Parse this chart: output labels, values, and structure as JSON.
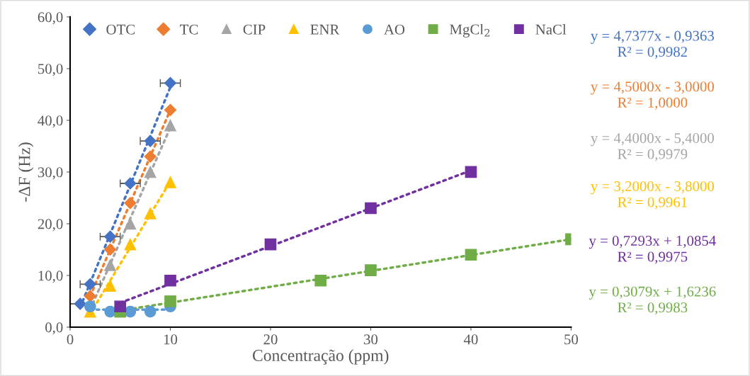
{
  "chart_data": {
    "type": "scatter",
    "xlabel": "Concentração (ppm)",
    "ylabel": "-ΔF (Hz)",
    "xlim": [
      0,
      50
    ],
    "xticks": [
      0,
      10,
      20,
      30,
      40,
      50
    ],
    "ylim": [
      0,
      60
    ],
    "yticks": [
      {
        "value": 0,
        "label": "0,0"
      },
      {
        "value": 10,
        "label": "10,0"
      },
      {
        "value": 20,
        "label": "20,0"
      },
      {
        "value": 30,
        "label": "30,0"
      },
      {
        "value": 40,
        "label": "40,0"
      },
      {
        "value": 50,
        "label": "50,0"
      },
      {
        "value": 60,
        "label": "60,0"
      }
    ],
    "grid": false,
    "legend": "top",
    "series": [
      {
        "name": "OTC",
        "color": "#4472c4",
        "marker": "diamond",
        "x": [
          1,
          2,
          4,
          6,
          8,
          10
        ],
        "values": [
          4.5,
          8.3,
          17.5,
          27.8,
          36,
          47.2
        ],
        "xerrors": [
          1,
          1,
          1,
          1,
          1,
          1
        ]
      },
      {
        "name": "TC",
        "color": "#ed7d31",
        "marker": "diamond",
        "x": [
          2,
          4,
          6,
          8,
          10
        ],
        "values": [
          6,
          15,
          24,
          33,
          42
        ]
      },
      {
        "name": "CIP",
        "color": "#a5a5a5",
        "marker": "triangle",
        "x": [
          4,
          6,
          8,
          10
        ],
        "values": [
          12,
          20,
          30,
          39
        ]
      },
      {
        "name": "ENR",
        "color": "#ffc000",
        "marker": "triangle",
        "x": [
          2,
          4,
          6,
          8,
          10
        ],
        "values": [
          3,
          8,
          16,
          22,
          28
        ]
      },
      {
        "name": "AO",
        "color": "#5b9bd5",
        "marker": "circle",
        "x": [
          2,
          4,
          6,
          8,
          10
        ],
        "values": [
          4,
          3,
          3,
          3,
          4
        ]
      },
      {
        "name": "MgCl$_{2}$",
        "color": "#70ad47",
        "marker": "square",
        "x": [
          5,
          10,
          25,
          30,
          40,
          50
        ],
        "values": [
          3,
          5,
          9,
          11,
          14,
          17
        ]
      },
      {
        "name": "NaCl",
        "color": "#7030a0",
        "marker": "square",
        "x": [
          5,
          10,
          20,
          30,
          40
        ],
        "values": [
          4,
          9,
          16,
          23,
          30
        ]
      },
      {
        "type": "line",
        "color": "#4472c4",
        "line_style": "dotted",
        "marker": "none",
        "x": [
          1,
          10
        ],
        "values": [
          3.8,
          46.4
        ]
      },
      {
        "type": "line",
        "color": "#ed7d31",
        "line_style": "dotted",
        "marker": "none",
        "x": [
          2,
          10
        ],
        "values": [
          6,
          42
        ]
      },
      {
        "type": "line",
        "color": "#a5a5a5",
        "line_style": "dotted",
        "marker": "none",
        "x": [
          2,
          10
        ],
        "values": [
          3.4,
          38.6
        ]
      },
      {
        "type": "line",
        "color": "#ffc000",
        "line_style": "dotted",
        "marker": "none",
        "x": [
          2,
          10
        ],
        "values": [
          2.6,
          28.2
        ]
      },
      {
        "type": "line",
        "color": "#5b9bd5",
        "line_style": "dotted",
        "marker": "none",
        "x": [
          2,
          10
        ],
        "values": [
          3.4,
          3.4
        ]
      },
      {
        "type": "line",
        "color": "#70ad47",
        "line_style": "dotted",
        "marker": "none",
        "x": [
          5,
          50
        ],
        "values": [
          3.2,
          17
        ]
      },
      {
        "type": "line",
        "color": "#7030a0",
        "line_style": "dotted",
        "marker": "none",
        "x": [
          5,
          40
        ],
        "values": [
          4.7,
          30.3
        ]
      }
    ],
    "annotations": [
      "y = 4,7377x - 0,9363\nR² = 0,9982",
      "y = 4,5000x - 3,0000\nR² = 1,0000",
      "y = 4,4000x - 5,4000\nR² = 0,9979",
      "y = 3,2000x - 3,8000\nR² = 0,9961",
      "y = 0,7293x + 1,0854\nR² = 0,9975",
      "y = 0,3079x + 1,6236\nR² = 0,9983"
    ]
  }
}
